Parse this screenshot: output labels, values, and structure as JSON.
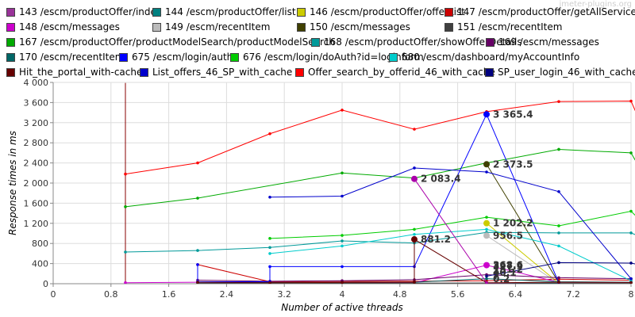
{
  "watermark": "jmeter-plugins.org",
  "chart_data": {
    "type": "line",
    "title": "",
    "xlabel": "Number of active threads",
    "ylabel": "Response times in ms",
    "xlim": [
      0,
      8
    ],
    "ylim": [
      0,
      4000
    ],
    "xticks": [
      "0",
      "0.8",
      "1.6",
      "2.4",
      "3.2",
      "4",
      "4.8",
      "5.6",
      "6.4",
      "7.2",
      "8"
    ],
    "xtick_values": [
      0,
      0.8,
      1.6,
      2.4,
      3.2,
      4,
      4.8,
      5.6,
      6.4,
      7.2,
      8
    ],
    "yticks": [
      "0",
      "400",
      "800",
      "1 200",
      "1 600",
      "2 000",
      "2 400",
      "2 800",
      "3 200",
      "3 600",
      "4 000"
    ],
    "ytick_values": [
      0,
      400,
      800,
      1200,
      1600,
      2000,
      2400,
      2800,
      3200,
      3600,
      4000
    ],
    "grid": true,
    "legend_position": "top",
    "series": [
      {
        "name": "143 /escm/productOffer/index",
        "color": "#993399",
        "points": [
          [
            6,
            8
          ],
          [
            7,
            3
          ]
        ]
      },
      {
        "name": "144 /escm/productOffer/list",
        "color": "#008080",
        "points": [
          [
            6,
            15
          ],
          [
            7,
            8
          ]
        ]
      },
      {
        "name": "146 /escm/productOffer/offerList",
        "color": "#cccc00",
        "points": [
          [
            6,
            1202.2
          ],
          [
            7,
            10
          ]
        ],
        "labels": [
          {
            "x": 6,
            "y": 1202.2,
            "text": "1 202.2"
          }
        ]
      },
      {
        "name": "147 /escm/productOffer/getAllService",
        "color": "#cc0000",
        "points": [
          [
            2,
            380
          ],
          [
            3,
            40
          ],
          [
            4,
            45
          ],
          [
            5,
            50
          ],
          [
            6,
            60
          ],
          [
            7,
            90
          ],
          [
            8,
            70
          ]
        ]
      },
      {
        "name": "148 /escm/messages",
        "color": "#cc00cc",
        "points": [
          [
            1,
            20
          ],
          [
            2,
            30
          ],
          [
            3,
            25
          ],
          [
            4,
            20
          ],
          [
            5,
            20
          ],
          [
            6,
            368.6
          ],
          [
            7,
            30
          ],
          [
            8,
            25
          ]
        ],
        "labels": [
          {
            "x": 6,
            "y": 368.6,
            "text": "368.6"
          }
        ]
      },
      {
        "name": "149 /escm/recentItem",
        "color": "#bbbbbb",
        "points": [
          [
            6,
            956.5
          ],
          [
            7,
            5
          ]
        ],
        "labels": [
          {
            "x": 6,
            "y": 956.5,
            "text": "956.5"
          }
        ]
      },
      {
        "name": "150 /escm/messages",
        "color": "#404000",
        "points": [
          [
            6,
            2373.5
          ],
          [
            7,
            20
          ]
        ],
        "labels": [
          {
            "x": 6,
            "y": 2373.5,
            "text": "2 373.5"
          }
        ]
      },
      {
        "name": "151 /escm/recentItem",
        "color": "#404040",
        "points": [
          [
            2,
            10
          ],
          [
            3,
            12
          ],
          [
            4,
            10
          ],
          [
            5,
            12
          ],
          [
            6,
            15
          ],
          [
            7,
            12
          ],
          [
            8,
            12
          ]
        ]
      },
      {
        "name": "167 /escm/productOffer/productModelSearch/productModelSearch",
        "color": "#00aa00",
        "points": [
          [
            1,
            1530
          ],
          [
            2,
            1700
          ],
          [
            4,
            2200
          ],
          [
            5,
            2100
          ],
          [
            6,
            2400
          ],
          [
            7,
            2670
          ],
          [
            8,
            2600
          ],
          [
            8.1,
            2350
          ]
        ]
      },
      {
        "name": "168 /escm/productOffer/showOfferDetails",
        "color": "#009999",
        "points": [
          [
            1,
            630
          ],
          [
            2,
            660
          ],
          [
            3,
            720
          ],
          [
            4,
            850
          ],
          [
            5,
            810
          ],
          [
            6,
            1020
          ],
          [
            7,
            1010
          ],
          [
            8,
            1010
          ],
          [
            8.1,
            950
          ]
        ]
      },
      {
        "name": "169 /escm/messages",
        "color": "#660066",
        "points": [
          [
            2,
            70
          ],
          [
            3,
            50
          ],
          [
            4,
            60
          ],
          [
            5,
            80
          ],
          [
            6,
            180
          ],
          [
            7,
            120
          ],
          [
            8,
            100
          ]
        ]
      },
      {
        "name": "170 /escm/recentItem",
        "color": "#006666",
        "points": [
          [
            2,
            30
          ],
          [
            3,
            25
          ],
          [
            4,
            25
          ],
          [
            5,
            30
          ],
          [
            6,
            100
          ],
          [
            7,
            40
          ],
          [
            8,
            30
          ]
        ]
      },
      {
        "name": "675 /escm/login/auth",
        "color": "#0000ff",
        "points": [
          [
            2,
            380
          ],
          [
            2,
            40
          ],
          [
            3,
            40
          ],
          [
            3,
            340
          ],
          [
            4,
            340
          ],
          [
            5,
            340
          ],
          [
            6,
            3365.4
          ],
          [
            7,
            20
          ]
        ],
        "labels": [
          {
            "x": 6,
            "y": 3365.4,
            "text": "3 365.4"
          }
        ]
      },
      {
        "name": "676 /escm/login/doAuth?id=loginform",
        "color": "#00cc00",
        "points": [
          [
            3,
            900
          ],
          [
            4,
            960
          ],
          [
            5,
            1080
          ],
          [
            6,
            1320
          ],
          [
            7,
            1150
          ],
          [
            8,
            1440
          ],
          [
            8.1,
            1300
          ]
        ]
      },
      {
        "name": "680 /escm/dashboard/myAccountInfo",
        "color": "#00cccc",
        "points": [
          [
            3,
            600
          ],
          [
            4,
            750
          ],
          [
            5,
            980
          ],
          [
            6,
            1080
          ],
          [
            7,
            750
          ],
          [
            8,
            60
          ]
        ]
      },
      {
        "name": "Hit_the_portal_with-cache",
        "color": "#660000",
        "points": [
          [
            2,
            30
          ],
          [
            3,
            20
          ],
          [
            4,
            25
          ],
          [
            5,
            30
          ],
          [
            5,
            881.2
          ],
          [
            6,
            20
          ],
          [
            7,
            30
          ],
          [
            8,
            25
          ]
        ],
        "labels": [
          {
            "x": 5,
            "y": 881.2,
            "text": "881.2"
          }
        ]
      },
      {
        "name": "List_offers_46_SP_with_cache",
        "color": "#0000cc",
        "points": [
          [
            3,
            1720
          ],
          [
            4,
            1740
          ],
          [
            5,
            2300
          ],
          [
            6,
            2220
          ],
          [
            7,
            1830
          ],
          [
            8,
            100
          ]
        ]
      },
      {
        "name": "Offer_search_by_offerid_46_with_cache",
        "color": "#ff0000",
        "points": [
          [
            1,
            2180
          ],
          [
            2,
            2400
          ],
          [
            3,
            2980
          ],
          [
            4,
            3450
          ],
          [
            5,
            3070
          ],
          [
            6,
            3420
          ],
          [
            7,
            3620
          ],
          [
            8,
            3630
          ],
          [
            8.1,
            3300
          ]
        ]
      },
      {
        "name": "SP_user_login_46_with_cache",
        "color": "#000080",
        "points": [
          [
            6,
            150
          ],
          [
            7,
            420
          ],
          [
            8,
            410
          ],
          [
            8.1,
            380
          ]
        ]
      },
      {
        "name": "2083.4 series",
        "color": "#aa00aa",
        "points": [
          [
            5,
            2083.4
          ],
          [
            6,
            20
          ]
        ],
        "labels": [
          {
            "x": 5,
            "y": 2083.4,
            "text": "2 083.4"
          }
        ],
        "legend": false
      }
    ],
    "bottom_labels": [
      "327.9",
      "151.2",
      "40.1",
      "7",
      "0.2"
    ]
  },
  "legend_rows": [
    [
      {
        "label": "143 /escm/productOffer/index",
        "color": "#993399"
      },
      {
        "label": "144 /escm/productOffer/list",
        "color": "#008080"
      },
      {
        "label": "146 /escm/productOffer/offerList",
        "color": "#cccc00"
      },
      {
        "label": "147 /escm/productOffer/getAllService",
        "color": "#cc0000"
      }
    ],
    [
      {
        "label": "148 /escm/messages",
        "color": "#cc00cc"
      },
      {
        "label": "149 /escm/recentItem",
        "color": "#bbbbbb"
      },
      {
        "label": "150 /escm/messages",
        "color": "#404000"
      },
      {
        "label": "151 /escm/recentItem",
        "color": "#404040"
      }
    ],
    [
      {
        "label": "167 /escm/productOffer/productModelSearch/productModelSearch",
        "color": "#00aa00"
      },
      {
        "label": "168 /escm/productOffer/showOfferDetails",
        "color": "#009999"
      },
      {
        "label": "169 /escm/messages",
        "color": "#660066"
      }
    ],
    [
      {
        "label": "170 /escm/recentItem",
        "color": "#006666"
      },
      {
        "label": "675 /escm/login/auth",
        "color": "#0000ff"
      },
      {
        "label": "676 /escm/login/doAuth?id=loginform",
        "color": "#00cc00"
      },
      {
        "label": "680 /escm/dashboard/myAccountInfo",
        "color": "#00cccc"
      }
    ],
    [
      {
        "label": "Hit_the_portal_with-cache",
        "color": "#660000"
      },
      {
        "label": "List_offers_46_SP_with_cache",
        "color": "#0000cc"
      },
      {
        "label": "Offer_search_by_offerid_46_with_cache",
        "color": "#ff0000"
      },
      {
        "label": "SP_user_login_46_with_cache",
        "color": "#000080"
      }
    ]
  ]
}
